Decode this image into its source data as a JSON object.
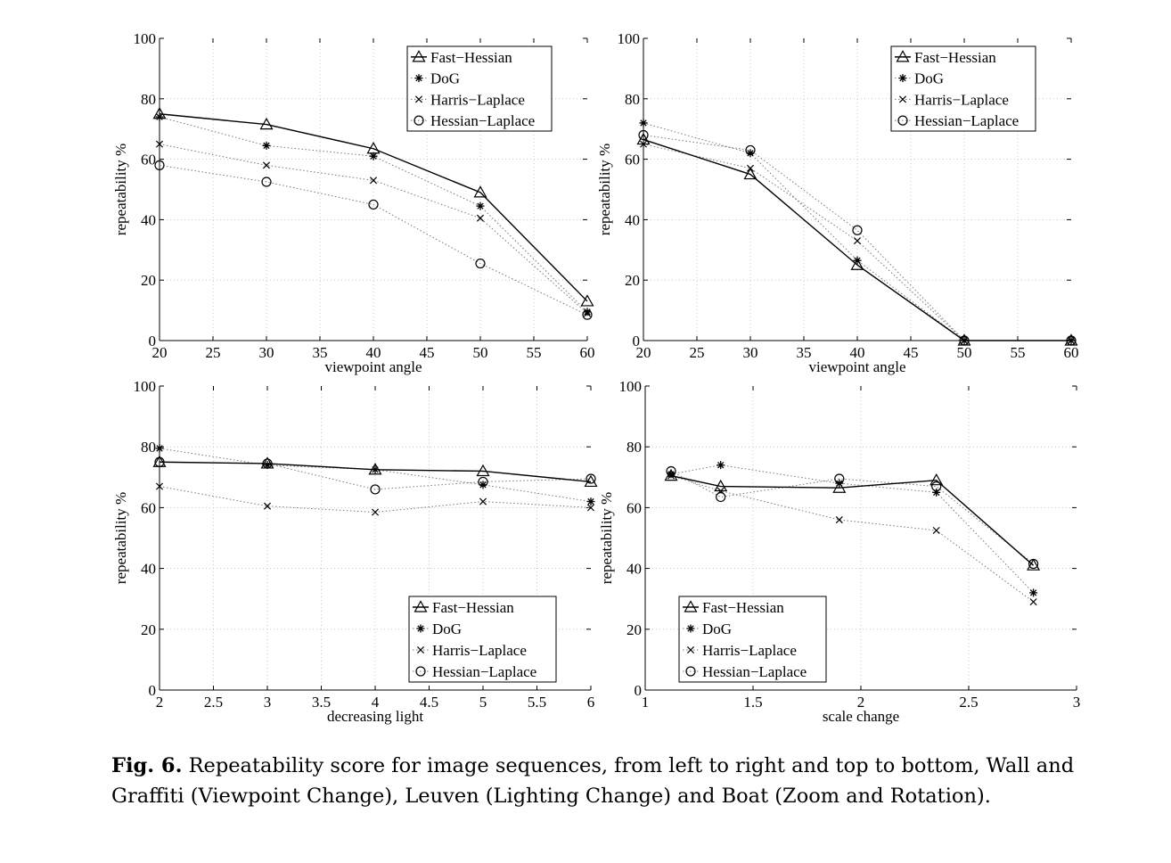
{
  "chart_data": [
    {
      "type": "line",
      "xlabel": "viewpoint angle",
      "ylabel": "repeatability %",
      "xlim": [
        20,
        60
      ],
      "ylim": [
        0,
        100
      ],
      "xticks": [
        "20",
        "25",
        "30",
        "35",
        "40",
        "45",
        "50",
        "55",
        "60"
      ],
      "yticks": [
        "0",
        "20",
        "40",
        "60",
        "80",
        "100"
      ],
      "grid": true,
      "legend_position": "top-right",
      "x": [
        20,
        30,
        40,
        50,
        60
      ],
      "series": [
        {
          "name": "Fast−Hessian",
          "marker": "triangle",
          "values": [
            75,
            71.5,
            63.5,
            49,
            13
          ]
        },
        {
          "name": "DoG",
          "marker": "star",
          "values": [
            74,
            64.5,
            61,
            44.5,
            9.5
          ]
        },
        {
          "name": "Harris−Laplace",
          "marker": "x",
          "values": [
            65,
            58,
            53,
            40.5,
            9
          ]
        },
        {
          "name": "Hessian−Laplace",
          "marker": "circle",
          "values": [
            58,
            52.5,
            45,
            25.5,
            8.5
          ]
        }
      ]
    },
    {
      "type": "line",
      "xlabel": "viewpoint angle",
      "ylabel": "repeatability %",
      "xlim": [
        20,
        60
      ],
      "ylim": [
        0,
        100
      ],
      "xticks": [
        "20",
        "25",
        "30",
        "35",
        "40",
        "45",
        "50",
        "55",
        "60"
      ],
      "yticks": [
        "0",
        "20",
        "40",
        "60",
        "80",
        "100"
      ],
      "grid": true,
      "legend_position": "top-right",
      "x": [
        20,
        30,
        40,
        50,
        60
      ],
      "series": [
        {
          "name": "Fast−Hessian",
          "marker": "triangle",
          "values": [
            66.5,
            55,
            25,
            0,
            0
          ]
        },
        {
          "name": "DoG",
          "marker": "star",
          "values": [
            72,
            62,
            26.5,
            0,
            0
          ]
        },
        {
          "name": "Harris−Laplace",
          "marker": "x",
          "values": [
            65,
            57,
            33,
            0,
            0
          ]
        },
        {
          "name": "Hessian−Laplace",
          "marker": "circle",
          "values": [
            68,
            63,
            36.5,
            0,
            0
          ]
        }
      ]
    },
    {
      "type": "line",
      "xlabel": "decreasing light",
      "ylabel": "repeatability %",
      "xlim": [
        2,
        6
      ],
      "ylim": [
        0,
        100
      ],
      "xticks": [
        "2",
        "2.5",
        "3",
        "3.5",
        "4",
        "4.5",
        "5",
        "5.5",
        "6"
      ],
      "yticks": [
        "0",
        "20",
        "40",
        "60",
        "80",
        "100"
      ],
      "grid": true,
      "legend_position": "bottom-right",
      "x": [
        2,
        3,
        4,
        5,
        6
      ],
      "series": [
        {
          "name": "Fast−Hessian",
          "marker": "triangle",
          "values": [
            75,
            74.5,
            72.5,
            72,
            68.5
          ]
        },
        {
          "name": "DoG",
          "marker": "star",
          "values": [
            79.5,
            74,
            72.5,
            67.5,
            62
          ]
        },
        {
          "name": "Harris−Laplace",
          "marker": "x",
          "values": [
            67,
            60.5,
            58.5,
            62,
            60
          ]
        },
        {
          "name": "Hessian−Laplace",
          "marker": "circle",
          "values": [
            75,
            74.5,
            66,
            68.5,
            69.5
          ]
        }
      ]
    },
    {
      "type": "line",
      "xlabel": "scale change",
      "ylabel": "repeatability %",
      "xlim": [
        1,
        3
      ],
      "ylim": [
        0,
        100
      ],
      "xticks": [
        "1",
        "1.5",
        "2",
        "2.5",
        "3"
      ],
      "yticks": [
        "0",
        "20",
        "40",
        "60",
        "80",
        "100"
      ],
      "grid": true,
      "legend_position": "bottom-left",
      "x": [
        1.12,
        1.35,
        1.9,
        2.35,
        2.8
      ],
      "series": [
        {
          "name": "Fast−Hessian",
          "marker": "triangle",
          "values": [
            70.5,
            67,
            66.5,
            69,
            41
          ]
        },
        {
          "name": "DoG",
          "marker": "star",
          "values": [
            71,
            74,
            68,
            65,
            32
          ]
        },
        {
          "name": "Harris−Laplace",
          "marker": "x",
          "values": [
            70.5,
            65.5,
            56,
            52.5,
            29
          ]
        },
        {
          "name": "Hessian−Laplace",
          "marker": "circle",
          "values": [
            72,
            63.5,
            69.5,
            67,
            41.5
          ]
        }
      ]
    }
  ],
  "caption": {
    "label": "Fig. 6.",
    "text": "Repeatability score for image sequences, from left to right and top to bottom, Wall and Graffiti (Viewpoint Change), Leuven (Lighting Change) and Boat (Zoom and Rotation)."
  }
}
